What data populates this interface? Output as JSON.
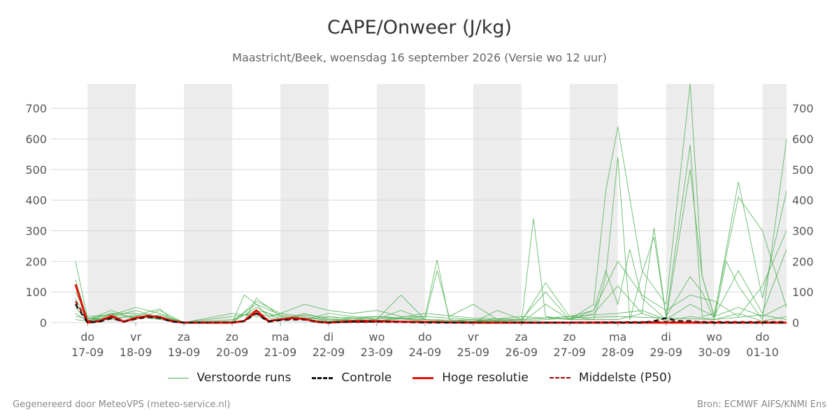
{
  "header": {
    "title": "CAPE/Onweer (J/kg)",
    "subtitle": "Maastricht/Beek, woensdag 16 september 2026 (Versie wo 12 uur)"
  },
  "legend": [
    {
      "label": "Verstoorde runs",
      "color": "#4caf50",
      "style": "thin"
    },
    {
      "label": "Controle",
      "color": "#111111",
      "style": "dashed"
    },
    {
      "label": "Hoge resolutie",
      "color": "#e3120b",
      "style": "solid"
    },
    {
      "label": "Middelste (P50)",
      "color": "#a30000",
      "style": "dashed"
    }
  ],
  "footer": {
    "left": "Gegenereerd door MeteoVPS (meteo-service.nl)",
    "right": "Bron: ECMWF AIFS/KNMI Ens"
  },
  "chart_data": {
    "type": "line",
    "title": "CAPE/Onweer (J/kg)",
    "subtitle": "Maastricht/Beek, woensdag 16 september 2026 (Versie wo 12 uur)",
    "xlabel": "",
    "ylabel": "",
    "ylim": [
      0,
      780
    ],
    "yticks": [
      0,
      100,
      200,
      300,
      400,
      500,
      600,
      700
    ],
    "xlim": [
      -0.25,
      14.5
    ],
    "x_ticks": [
      {
        "x": 0,
        "day": "do",
        "date": "17-09"
      },
      {
        "x": 1,
        "day": "vr",
        "date": "18-09"
      },
      {
        "x": 2,
        "day": "za",
        "date": "19-09"
      },
      {
        "x": 3,
        "day": "zo",
        "date": "20-09"
      },
      {
        "x": 4,
        "day": "ma",
        "date": "21-09"
      },
      {
        "x": 5,
        "day": "di",
        "date": "22-09"
      },
      {
        "x": 6,
        "day": "wo",
        "date": "23-09"
      },
      {
        "x": 7,
        "day": "do",
        "date": "24-09"
      },
      {
        "x": 8,
        "day": "vr",
        "date": "25-09"
      },
      {
        "x": 9,
        "day": "za",
        "date": "26-09"
      },
      {
        "x": 10,
        "day": "zo",
        "date": "27-09"
      },
      {
        "x": 11,
        "day": "ma",
        "date": "28-09"
      },
      {
        "x": 12,
        "day": "di",
        "date": "29-09"
      },
      {
        "x": 13,
        "day": "wo",
        "date": "30-09"
      },
      {
        "x": 14,
        "day": "do",
        "date": "01-10"
      }
    ],
    "shaded_bands": [
      [
        0,
        1
      ],
      [
        2,
        3
      ],
      [
        4,
        5
      ],
      [
        6,
        7
      ],
      [
        8,
        9
      ],
      [
        10,
        11
      ],
      [
        12,
        13
      ],
      [
        14,
        14.5
      ]
    ],
    "grid": true,
    "legend_position": "bottom-center",
    "series": [
      {
        "name": "Hoge resolutie",
        "color": "#e3120b",
        "style": "solid",
        "x": [
          -0.25,
          0,
          0.25,
          0.5,
          0.75,
          1,
          1.25,
          1.5,
          1.75,
          2,
          2.5,
          3,
          3.25,
          3.5,
          3.75,
          4,
          4.25,
          4.5,
          4.75,
          5,
          5.5,
          6,
          6.5,
          7,
          7.5,
          8,
          8.5,
          9,
          10,
          11,
          12,
          13,
          14,
          14.5
        ],
        "values": [
          125,
          0,
          5,
          22,
          3,
          15,
          22,
          18,
          5,
          0,
          0,
          0,
          5,
          40,
          5,
          10,
          15,
          12,
          3,
          0,
          5,
          5,
          3,
          2,
          1,
          0,
          0,
          0,
          0,
          0,
          0,
          0,
          0,
          0
        ]
      },
      {
        "name": "Controle",
        "color": "#111111",
        "style": "dashed",
        "x": [
          -0.25,
          0,
          0.25,
          0.5,
          0.75,
          1,
          1.25,
          1.5,
          1.75,
          2,
          2.5,
          3,
          3.25,
          3.5,
          3.75,
          4,
          4.25,
          4.5,
          4.75,
          5,
          5.5,
          6,
          6.5,
          7,
          8,
          9,
          10,
          11,
          11.5,
          11.75,
          12,
          12.25,
          12.5,
          12.75,
          13,
          14,
          14.5
        ],
        "values": [
          60,
          0,
          3,
          15,
          3,
          12,
          18,
          15,
          3,
          0,
          0,
          0,
          5,
          30,
          3,
          8,
          10,
          10,
          2,
          0,
          3,
          3,
          2,
          0,
          0,
          0,
          0,
          0,
          0,
          5,
          15,
          5,
          5,
          0,
          0,
          0,
          0
        ]
      },
      {
        "name": "Middelste (P50)",
        "color": "#a30000",
        "style": "dashed",
        "x": [
          -0.25,
          0,
          0.25,
          0.5,
          0.75,
          1,
          1.25,
          1.5,
          1.75,
          2,
          2.5,
          3,
          3.25,
          3.5,
          3.75,
          4,
          4.25,
          4.5,
          4.75,
          5,
          6,
          7,
          8,
          9,
          10,
          11,
          12,
          13,
          14,
          14.5
        ],
        "values": [
          70,
          5,
          5,
          18,
          3,
          14,
          20,
          16,
          4,
          0,
          0,
          0,
          6,
          32,
          5,
          10,
          12,
          10,
          3,
          1,
          2,
          1,
          0,
          0,
          1,
          2,
          3,
          3,
          3,
          3
        ]
      }
    ],
    "ensemble_note": "Verstoorde runs",
    "ensemble": [
      {
        "x": [
          -0.25,
          0,
          0.25,
          0.5,
          0.75,
          1,
          1.25,
          1.5,
          1.75,
          2,
          2.5,
          3,
          3.25,
          3.5,
          3.75,
          4,
          4.5,
          5,
          5.5,
          6,
          6.5,
          7,
          7.25,
          7.5,
          8,
          8.5,
          9,
          9.5,
          10,
          10.5,
          10.75,
          11,
          11.5,
          12,
          12.5,
          12.75,
          13,
          13.5,
          14,
          14.5
        ],
        "values": [
          200,
          15,
          10,
          30,
          5,
          20,
          35,
          45,
          10,
          0,
          0,
          0,
          90,
          60,
          20,
          30,
          60,
          40,
          30,
          40,
          20,
          20,
          205,
          10,
          0,
          40,
          10,
          100,
          10,
          60,
          430,
          640,
          170,
          60,
          780,
          150,
          20,
          460,
          80,
          430
        ]
      },
      {
        "x": [
          -0.25,
          0,
          0.5,
          1,
          1.5,
          2,
          3,
          3.25,
          3.5,
          4,
          4.5,
          5,
          5.5,
          6,
          6.5,
          7,
          7.25,
          7.5,
          8,
          8.5,
          9,
          9.5,
          10,
          10.5,
          10.75,
          11,
          11.25,
          11.5,
          11.75,
          12,
          12.5,
          12.75,
          13,
          13.5,
          14,
          14.5
        ],
        "values": [
          140,
          10,
          40,
          10,
          40,
          0,
          0,
          5,
          80,
          20,
          10,
          30,
          20,
          10,
          90,
          10,
          170,
          20,
          60,
          10,
          5,
          130,
          20,
          10,
          150,
          540,
          10,
          160,
          280,
          20,
          580,
          20,
          30,
          410,
          300,
          50
        ]
      },
      {
        "x": [
          -0.25,
          0,
          0.5,
          1,
          1.5,
          2,
          3,
          3.5,
          4,
          4.5,
          5,
          6,
          7,
          8,
          9,
          9.25,
          9.5,
          10,
          10.5,
          10.75,
          11,
          11.25,
          11.5,
          12,
          12.5,
          12.75,
          13,
          13.5,
          14,
          14.5
        ],
        "values": [
          100,
          20,
          25,
          50,
          30,
          0,
          0,
          50,
          10,
          30,
          10,
          5,
          20,
          10,
          0,
          340,
          20,
          10,
          40,
          170,
          60,
          240,
          80,
          10,
          500,
          150,
          20,
          170,
          30,
          240
        ]
      },
      {
        "x": [
          -0.25,
          0,
          0.5,
          1,
          1.5,
          2,
          3,
          3.5,
          4,
          4.5,
          5,
          6,
          7,
          8,
          9,
          9.5,
          10,
          10.5,
          11,
          11.5,
          11.75,
          12,
          12.5,
          12.75,
          13,
          13.25,
          13.5,
          14,
          14.5
        ],
        "values": [
          80,
          5,
          15,
          20,
          10,
          0,
          0,
          70,
          30,
          20,
          5,
          20,
          10,
          5,
          0,
          60,
          10,
          30,
          120,
          30,
          310,
          20,
          150,
          100,
          10,
          200,
          120,
          10,
          600
        ]
      },
      {
        "x": [
          -0.25,
          0,
          0.5,
          1,
          1.5,
          2,
          3,
          3.5,
          4,
          4.5,
          5,
          6,
          6.5,
          7,
          8,
          9,
          10,
          10.5,
          11,
          11.5,
          12,
          12.5,
          13,
          13.5,
          14,
          14.5
        ],
        "values": [
          50,
          10,
          30,
          30,
          20,
          0,
          10,
          40,
          20,
          10,
          5,
          10,
          40,
          10,
          5,
          10,
          20,
          40,
          200,
          90,
          40,
          90,
          70,
          20,
          120,
          300
        ]
      },
      {
        "x": [
          -0.25,
          0,
          0.5,
          1,
          1.5,
          2,
          3,
          3.5,
          4,
          4.5,
          5,
          6,
          7,
          8,
          9,
          10,
          11,
          11.5,
          12,
          12.5,
          13,
          13.5,
          14,
          14.5
        ],
        "values": [
          30,
          5,
          20,
          40,
          15,
          0,
          20,
          30,
          15,
          10,
          20,
          5,
          30,
          15,
          10,
          20,
          30,
          40,
          10,
          60,
          20,
          50,
          20,
          60
        ]
      },
      {
        "x": [
          -0.25,
          0,
          0.5,
          1,
          1.5,
          2,
          3,
          3.5,
          4,
          4.5,
          5,
          6,
          7,
          8,
          9,
          10,
          11,
          11.5,
          12,
          12.5,
          13,
          13.5,
          14,
          14.5
        ],
        "values": [
          20,
          15,
          10,
          25,
          10,
          0,
          5,
          60,
          25,
          15,
          10,
          15,
          10,
          5,
          20,
          10,
          10,
          30,
          5,
          20,
          10,
          30,
          5,
          20
        ]
      },
      {
        "x": [
          -0.25,
          0,
          0.5,
          1,
          1.5,
          2,
          3,
          3.5,
          4,
          4.5,
          5,
          6,
          7,
          8,
          9,
          10,
          11,
          12,
          13,
          14,
          14.5
        ],
        "values": [
          10,
          5,
          30,
          15,
          25,
          0,
          30,
          20,
          10,
          25,
          15,
          20,
          5,
          10,
          5,
          15,
          20,
          15,
          10,
          25,
          10
        ]
      }
    ]
  }
}
